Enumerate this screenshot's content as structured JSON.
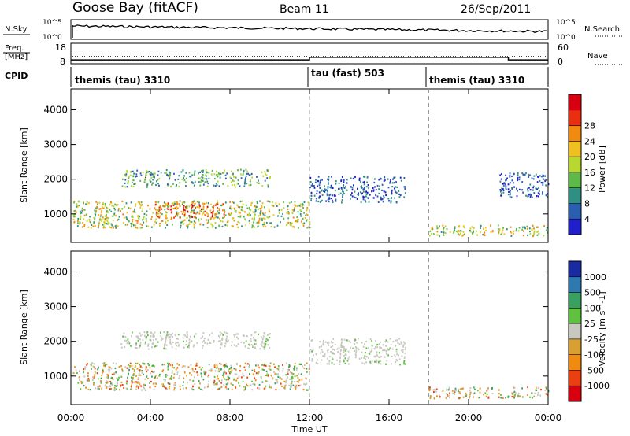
{
  "header": {
    "station": "Goose Bay (fitACF)",
    "beam": "Beam 11",
    "date": "26/Sep/2011"
  },
  "nsky_panel": {
    "left_label": "N.Sky",
    "right_label": "N.Search",
    "ytick_top": "10^5",
    "ytick_bottom": "10^0"
  },
  "freq_panel": {
    "left_label_1": "Freq.",
    "left_label_2": "[MHz]",
    "right_label": "Nave",
    "left_ticks": [
      "18",
      "8"
    ],
    "right_ticks": [
      "60",
      "0"
    ],
    "freq_mhz": [
      {
        "from": 0,
        "to": 12,
        "value": 10.2
      },
      {
        "from": 12,
        "to": 22,
        "value": 11.7
      },
      {
        "from": 22,
        "to": 24,
        "value": 10.2
      }
    ]
  },
  "cpid": {
    "label": "CPID",
    "segments": [
      {
        "label": "themis (tau) 3310",
        "start": 0,
        "end": 12
      },
      {
        "label": "tau (fast) 503",
        "start": 12,
        "end": 18
      },
      {
        "label": "themis (tau) 3310",
        "start": 18,
        "end": 24
      }
    ]
  },
  "chart_data": [
    {
      "type": "heatmap",
      "name": "power",
      "ylabel": "Slant Range [km]",
      "xlim": [
        0,
        24
      ],
      "ylim": [
        180,
        4600
      ],
      "yticks": [
        1000,
        2000,
        3000,
        4000
      ],
      "colorbar": {
        "label": "Power [dB]",
        "ticks": [
          "4",
          "8",
          "12",
          "16",
          "20",
          "24",
          "28"
        ],
        "colors": [
          "#1f1fcc",
          "#2a5fb0",
          "#2f8f82",
          "#5fb84a",
          "#b8d830",
          "#f0c020",
          "#f08a10",
          "#e83010",
          "#d80010"
        ]
      },
      "features": [
        {
          "t0": 0.1,
          "t1": 12.0,
          "r0": 620,
          "r1": 1400,
          "level": "strong"
        },
        {
          "t0": 4.2,
          "t1": 7.8,
          "r0": 900,
          "r1": 1350,
          "level": "peak"
        },
        {
          "t0": 2.5,
          "t1": 10.0,
          "r0": 1800,
          "r1": 2300,
          "level": "moderate"
        },
        {
          "t0": 12.0,
          "t1": 16.8,
          "r0": 1350,
          "r1": 2100,
          "level": "weak"
        },
        {
          "t0": 18.0,
          "t1": 24.0,
          "r0": 380,
          "r1": 700,
          "level": "strong"
        },
        {
          "t0": 21.5,
          "t1": 24.0,
          "r0": 1500,
          "r1": 2200,
          "level": "weak"
        }
      ]
    },
    {
      "type": "heatmap",
      "name": "velocity",
      "xlabel": "Time UT",
      "ylabel": "Slant Range [km]",
      "xlim": [
        0,
        24
      ],
      "ylim": [
        180,
        4600
      ],
      "yticks": [
        1000,
        2000,
        3000,
        4000
      ],
      "xticks": [
        "00:00",
        "04:00",
        "08:00",
        "12:00",
        "16:00",
        "20:00",
        "00:00"
      ],
      "colorbar": {
        "label": "Velocity [m s^-1]",
        "ticks": [
          "1000",
          "500",
          "100",
          "25",
          "-25",
          "-100",
          "-500",
          "-1000"
        ],
        "colors": [
          "#1a2aa0",
          "#2e7ab0",
          "#3aa060",
          "#60c040",
          "#c8c8c0",
          "#d8a030",
          "#f08a10",
          "#e84010",
          "#d80010"
        ]
      },
      "features": [
        {
          "t0": 0.1,
          "t1": 12.0,
          "r0": 620,
          "r1": 1400,
          "level": "mixed"
        },
        {
          "t0": 2.5,
          "t1": 10.0,
          "r0": 1800,
          "r1": 2300,
          "level": "ground"
        },
        {
          "t0": 12.0,
          "t1": 16.8,
          "r0": 1350,
          "r1": 2100,
          "level": "ground"
        },
        {
          "t0": 18.0,
          "t1": 24.0,
          "r0": 380,
          "r1": 700,
          "level": "mixed"
        }
      ]
    }
  ]
}
